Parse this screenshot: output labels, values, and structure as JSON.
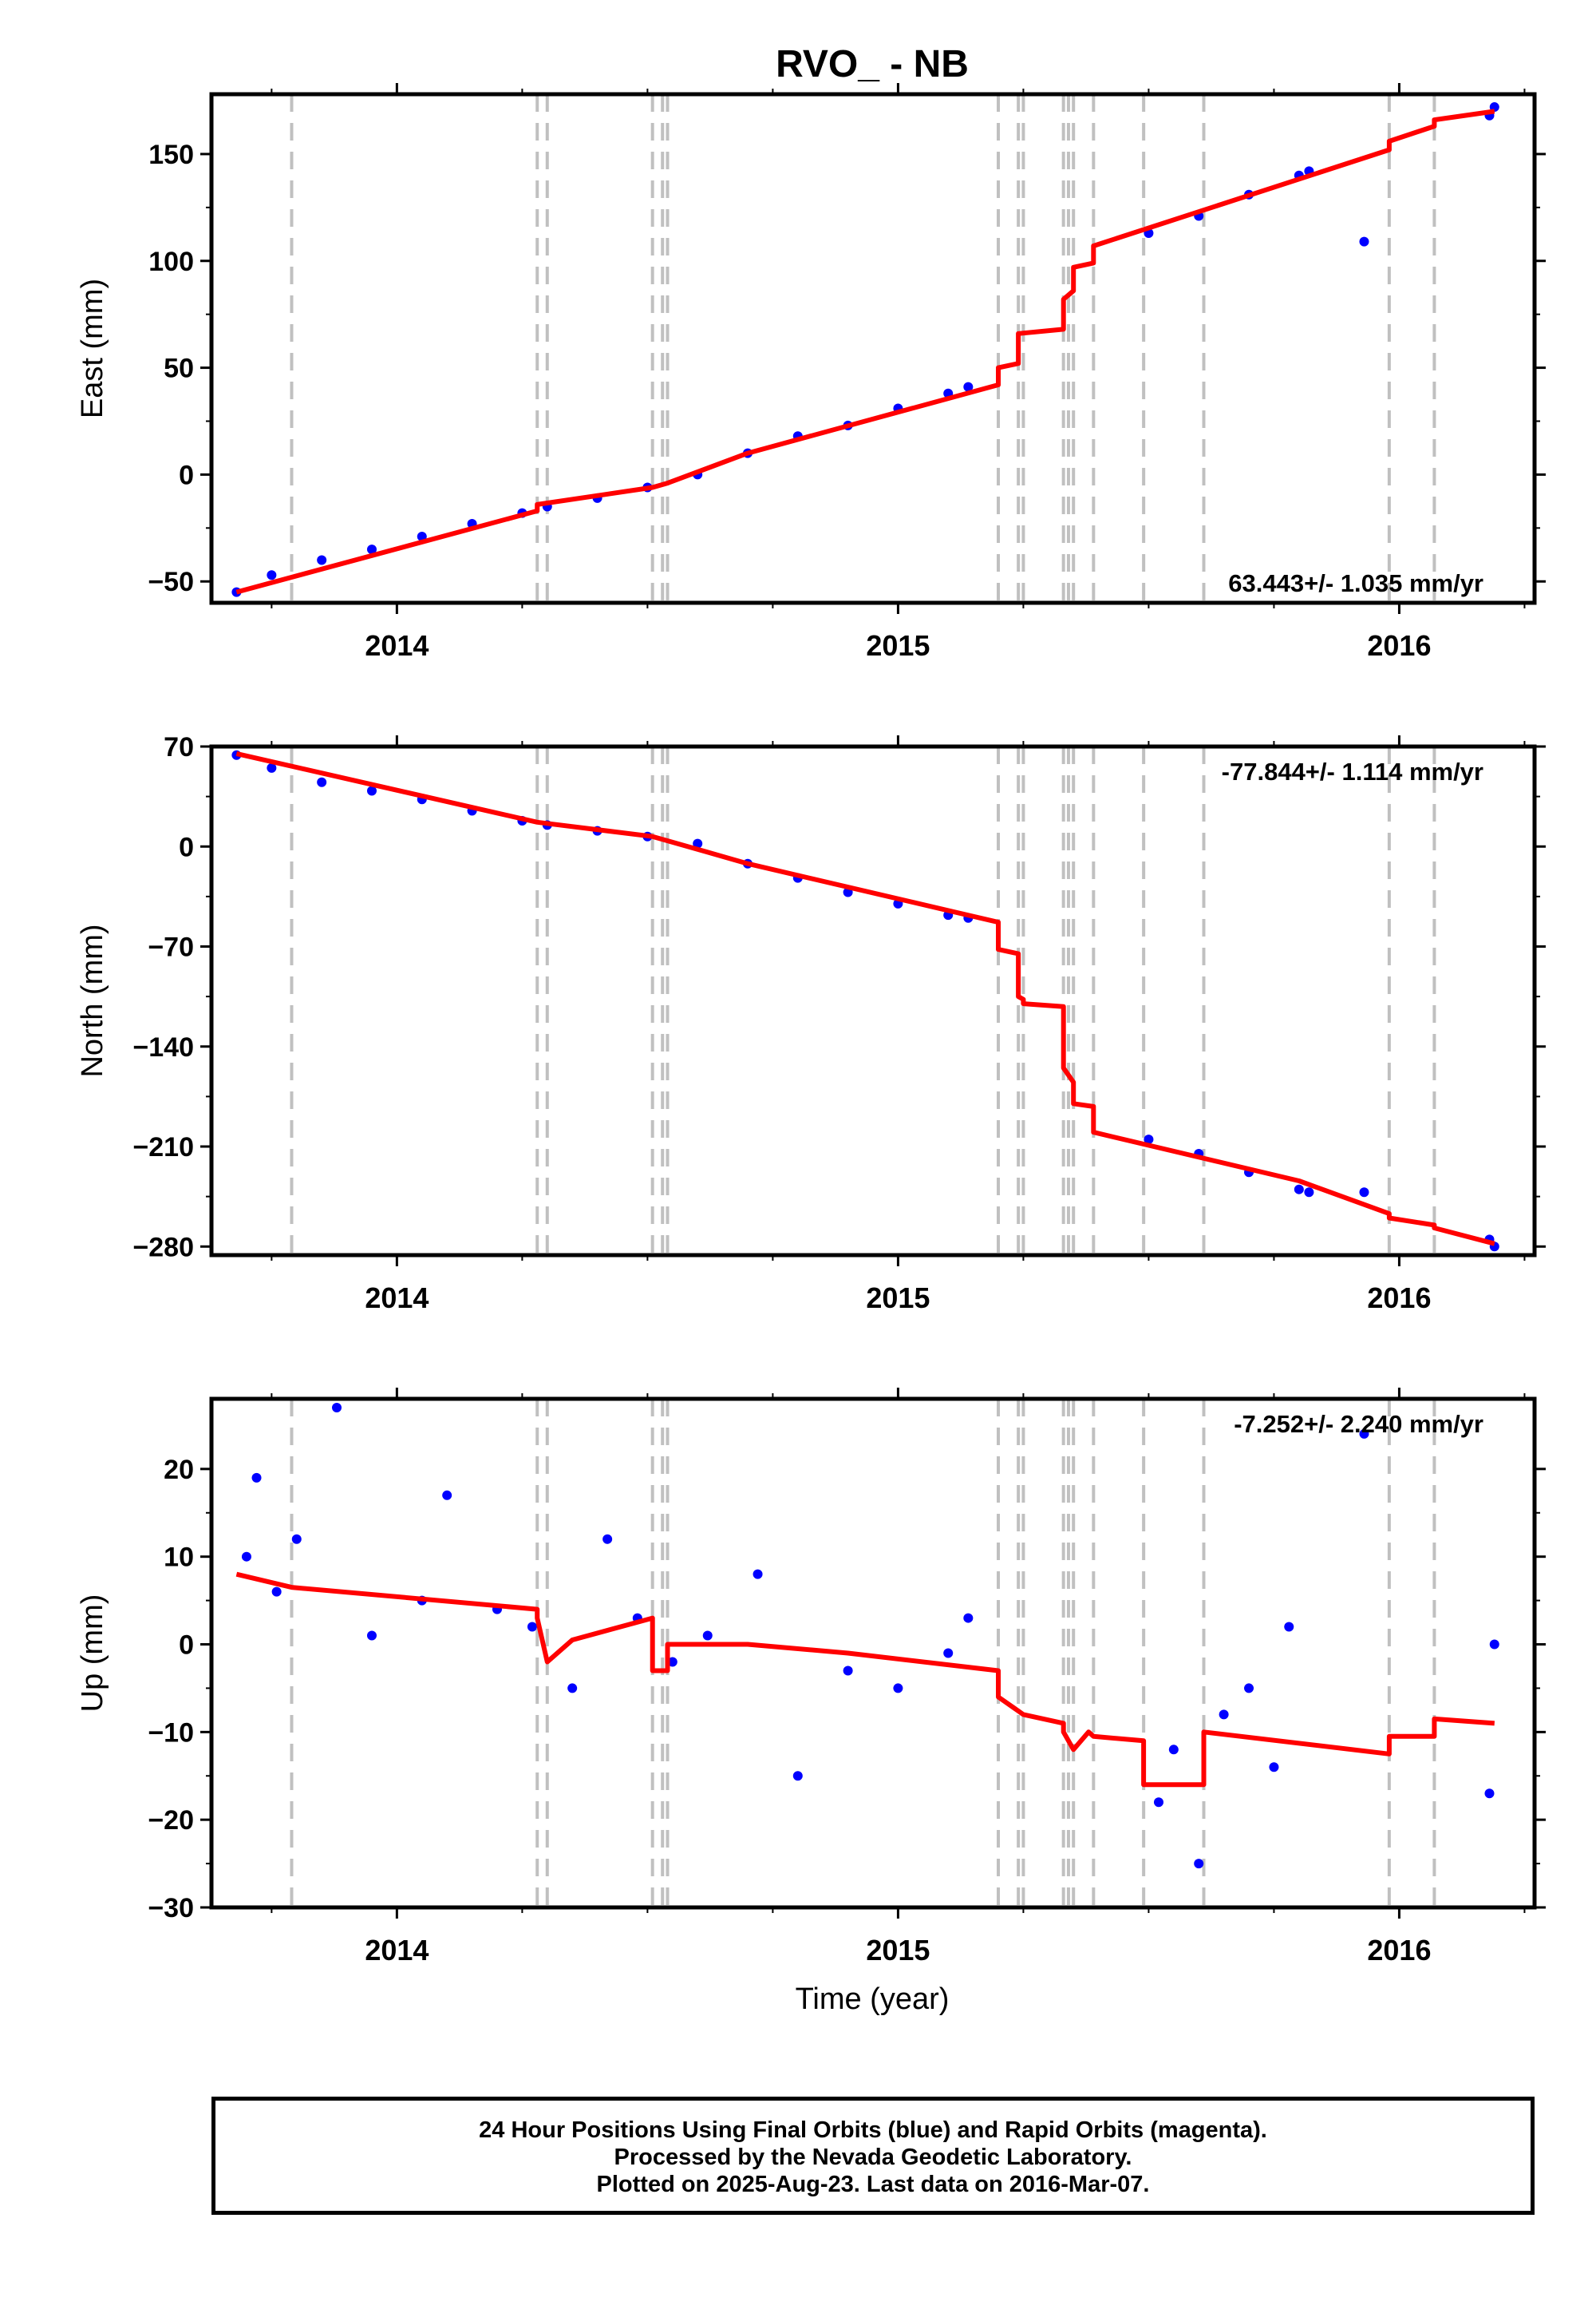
{
  "title": "RVO_ - NB",
  "xlabel": "Time (year)",
  "colors": {
    "data": "#0000ff",
    "model": "#ff0000",
    "event_lines": "#c0c0c0"
  },
  "footer": [
    "24 Hour Positions Using Final Orbits (blue) and Rapid Orbits (magenta).",
    "Processed by the Nevada Geodetic Laboratory.",
    "Plotted on 2025-Aug-23. Last data on 2016-Mar-07."
  ],
  "chart_data": [
    {
      "type": "scatter",
      "ylabel": "East (mm)",
      "rate_label": "63.443+/- 1.035 mm/yr",
      "xlim": [
        2013.63,
        2016.27
      ],
      "ylim": [
        -60,
        178
      ],
      "xticks": [
        "2014",
        "2015",
        "2016"
      ],
      "yticks": [
        "150",
        "100",
        "50",
        "0",
        "−50"
      ],
      "event_lines": [
        2013.79,
        2014.28,
        2014.3,
        2014.51,
        2014.53,
        2014.54,
        2015.2,
        2015.24,
        2015.25,
        2015.33,
        2015.34,
        2015.35,
        2015.39,
        2015.49,
        2015.61,
        2015.98,
        2016.07
      ],
      "series": [
        {
          "values_note": "",
          "x": [
            2013.68,
            2013.75,
            2013.85,
            2013.95,
            2014.05,
            2014.15,
            2014.25,
            2014.3,
            2014.4,
            2014.5,
            2014.6,
            2014.7,
            2014.8,
            2014.9,
            2015.0,
            2015.1,
            2015.14,
            2015.5,
            2015.6,
            2015.7,
            2015.8,
            2015.82,
            2015.93,
            2016.18,
            2016.19
          ],
          "y": [
            -55,
            -47,
            -40,
            -35,
            -29,
            -23,
            -18,
            -15,
            -11,
            -6,
            0,
            10,
            18,
            23,
            31,
            38,
            41,
            113,
            121,
            131,
            140,
            142,
            109,
            168,
            172
          ]
        }
      ],
      "model": {
        "x": [
          2013.68,
          2014.28,
          2014.28,
          2014.51,
          2014.51,
          2014.54,
          2014.54,
          2014.7,
          2015.2,
          2015.2,
          2015.24,
          2015.24,
          2015.33,
          2015.33,
          2015.35,
          2015.35,
          2015.39,
          2015.39,
          2015.98,
          2015.98,
          2016.07,
          2016.07,
          2016.19
        ],
        "y": [
          -55,
          -17,
          -14,
          -6,
          -6,
          -4,
          -4,
          10,
          42,
          50,
          52,
          66,
          68,
          82,
          86,
          97,
          99,
          107,
          152,
          156,
          163,
          166,
          170
        ]
      }
    },
    {
      "type": "scatter",
      "ylabel": "North (mm)",
      "rate_label": "-77.844+/- 1.114 mm/yr",
      "xlim": [
        2013.63,
        2016.27
      ],
      "ylim": [
        -286,
        70
      ],
      "xticks": [
        "2014",
        "2015",
        "2016"
      ],
      "yticks": [
        "70",
        "0",
        "−70",
        "−140",
        "−210",
        "−280"
      ],
      "event_lines": [
        2013.79,
        2014.28,
        2014.3,
        2014.51,
        2014.53,
        2014.54,
        2015.2,
        2015.24,
        2015.25,
        2015.33,
        2015.34,
        2015.35,
        2015.39,
        2015.49,
        2015.61,
        2015.98,
        2016.07
      ],
      "series": [
        {
          "x": [
            2013.68,
            2013.75,
            2013.85,
            2013.95,
            2014.05,
            2014.15,
            2014.25,
            2014.3,
            2014.4,
            2014.5,
            2014.6,
            2014.7,
            2014.8,
            2014.9,
            2015.0,
            2015.1,
            2015.14,
            2015.5,
            2015.6,
            2015.7,
            2015.8,
            2015.82,
            2015.93,
            2016.18,
            2016.19
          ],
          "y": [
            64,
            55,
            45,
            39,
            33,
            25,
            18,
            15,
            11,
            7,
            2,
            -12,
            -22,
            -32,
            -40,
            -48,
            -50,
            -205,
            -215,
            -228,
            -240,
            -242,
            -242,
            -275,
            -280
          ]
        }
      ],
      "model": {
        "x": [
          2013.68,
          2014.28,
          2014.51,
          2014.7,
          2015.2,
          2015.2,
          2015.24,
          2015.24,
          2015.25,
          2015.25,
          2015.33,
          2015.33,
          2015.35,
          2015.35,
          2015.39,
          2015.39,
          2015.8,
          2015.98,
          2015.98,
          2016.07,
          2016.07,
          2016.19
        ],
        "y": [
          65,
          17,
          7,
          -12,
          -53,
          -72,
          -75,
          -105,
          -107,
          -110,
          -112,
          -155,
          -165,
          -180,
          -182,
          -200,
          -234,
          -257,
          -260,
          -265,
          -267,
          -278
        ]
      }
    },
    {
      "type": "scatter",
      "ylabel": "Up (mm)",
      "rate_label": "-7.252+/- 2.240 mm/yr",
      "xlim": [
        2013.63,
        2016.27
      ],
      "ylim": [
        -30,
        28
      ],
      "xticks": [
        "2014",
        "2015",
        "2016"
      ],
      "yticks": [
        "20",
        "10",
        "0",
        "−10",
        "−20",
        "−30"
      ],
      "event_lines": [
        2013.79,
        2014.28,
        2014.3,
        2014.51,
        2014.53,
        2014.54,
        2015.2,
        2015.24,
        2015.25,
        2015.33,
        2015.34,
        2015.35,
        2015.39,
        2015.49,
        2015.61,
        2015.98,
        2016.07
      ],
      "series": [
        {
          "x": [
            2013.7,
            2013.72,
            2013.76,
            2013.8,
            2013.88,
            2013.95,
            2014.05,
            2014.1,
            2014.2,
            2014.27,
            2014.35,
            2014.42,
            2014.48,
            2014.55,
            2014.62,
            2014.72,
            2014.8,
            2014.9,
            2015.0,
            2015.1,
            2015.14,
            2015.52,
            2015.55,
            2015.6,
            2015.65,
            2015.7,
            2015.75,
            2015.78,
            2015.93,
            2016.18,
            2016.19
          ],
          "y": [
            10,
            19,
            6,
            12,
            27,
            1,
            5,
            17,
            4,
            2,
            -5,
            12,
            3,
            -2,
            1,
            8,
            -15,
            -3,
            -5,
            -1,
            3,
            -18,
            -12,
            -25,
            -8,
            -5,
            -14,
            2,
            24,
            -17,
            0
          ]
        }
      ],
      "model": {
        "x": [
          2013.68,
          2013.79,
          2014.28,
          2014.28,
          2014.3,
          2014.35,
          2014.51,
          2014.51,
          2014.54,
          2014.54,
          2014.7,
          2014.9,
          2015.2,
          2015.2,
          2015.25,
          2015.33,
          2015.33,
          2015.35,
          2015.38,
          2015.39,
          2015.49,
          2015.49,
          2015.61,
          2015.61,
          2015.98,
          2015.98,
          2016.07,
          2016.07,
          2016.19
        ],
        "y": [
          8,
          6.5,
          4,
          3,
          -2,
          0.5,
          3,
          -3,
          -3,
          0,
          0,
          -1,
          -3,
          -6,
          -8,
          -9,
          -10,
          -12,
          -10,
          -10.5,
          -11,
          -16,
          -16,
          -10,
          -12.5,
          -10.5,
          -10.5,
          -8.5,
          -9
        ]
      }
    }
  ]
}
